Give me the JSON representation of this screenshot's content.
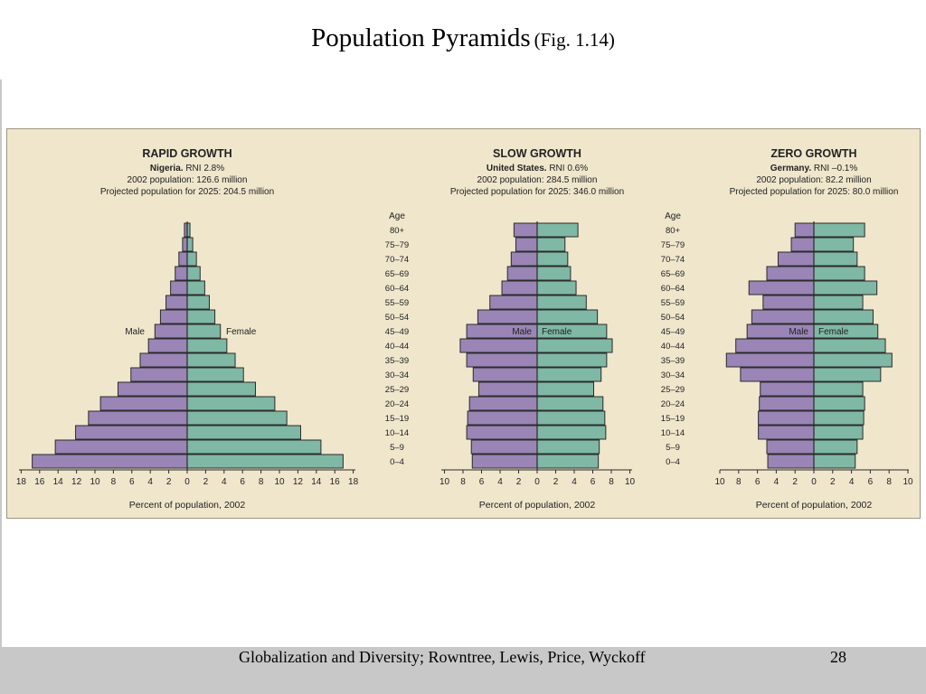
{
  "slide": {
    "title": "Population Pyramids",
    "subtitle": "(Fig. 1.14)",
    "footer_text": "Globalization and Diversity; Rowntree, Lewis, Price, Wyckoff",
    "page_number": "28"
  },
  "colors": {
    "male": "#9a85b6",
    "female": "#7fb8a4",
    "panel_bg": "#efe6cc",
    "outline": "#2b2b2b"
  },
  "chart_data": [
    {
      "type": "bar",
      "orientation": "population-pyramid",
      "title": "RAPID GROWTH",
      "country": "Nigeria.",
      "rni": "RNI 2.8%",
      "population_2002": "2002 population: 126.6 million",
      "projected_2025": "Projected population for 2025: 204.5 million",
      "xlabel": "Percent of population, 2002",
      "age_header": "Age",
      "male_label": "Male",
      "female_label": "Female",
      "x_ticks": [
        "18",
        "16",
        "14",
        "12",
        "10",
        "8",
        "6",
        "4",
        "2",
        "0",
        "2",
        "4",
        "6",
        "8",
        "10",
        "12",
        "14",
        "16",
        "18"
      ],
      "xlim": [
        -18,
        18
      ],
      "categories": [
        "80+",
        "75–79",
        "70–74",
        "65–69",
        "60–64",
        "55–59",
        "50–54",
        "45–49",
        "40–44",
        "35–39",
        "30–34",
        "25–29",
        "20–24",
        "15–19",
        "10–14",
        "5–9",
        "0–4"
      ],
      "series": [
        {
          "name": "Male",
          "values": [
            0.3,
            0.5,
            0.9,
            1.3,
            1.8,
            2.3,
            2.9,
            3.5,
            4.2,
            5.1,
            6.1,
            7.5,
            9.4,
            10.7,
            12.1,
            14.3,
            16.8
          ]
        },
        {
          "name": "Female",
          "values": [
            0.3,
            0.6,
            1.0,
            1.4,
            1.9,
            2.4,
            3.0,
            3.6,
            4.3,
            5.2,
            6.1,
            7.4,
            9.5,
            10.8,
            12.3,
            14.5,
            16.9
          ]
        }
      ]
    },
    {
      "type": "bar",
      "orientation": "population-pyramid",
      "title": "SLOW GROWTH",
      "country": "United States.",
      "rni": "RNI 0.6%",
      "population_2002": "2002 population: 284.5 million",
      "projected_2025": "Projected population for 2025: 346.0 million",
      "xlabel": "Percent of population, 2002",
      "age_header": "Age",
      "male_label": "Male",
      "female_label": "Female",
      "x_ticks": [
        "10",
        "8",
        "6",
        "4",
        "2",
        "0",
        "2",
        "4",
        "6",
        "8",
        "10"
      ],
      "xlim": [
        -10,
        10
      ],
      "categories": [
        "80+",
        "75–79",
        "70–74",
        "65–69",
        "60–64",
        "55–59",
        "50–54",
        "45–49",
        "40–44",
        "35–39",
        "30–34",
        "25–29",
        "20–24",
        "15–19",
        "10–14",
        "5–9",
        "0–4"
      ],
      "series": [
        {
          "name": "Male",
          "values": [
            2.5,
            2.3,
            2.8,
            3.2,
            3.8,
            5.1,
            6.4,
            7.6,
            8.3,
            7.6,
            6.9,
            6.3,
            7.3,
            7.5,
            7.6,
            7.1,
            7.0
          ]
        },
        {
          "name": "Female",
          "values": [
            4.4,
            3.0,
            3.3,
            3.6,
            4.2,
            5.3,
            6.5,
            7.5,
            8.1,
            7.5,
            6.9,
            6.1,
            7.1,
            7.3,
            7.4,
            6.7,
            6.6
          ]
        }
      ]
    },
    {
      "type": "bar",
      "orientation": "population-pyramid",
      "title": "ZERO GROWTH",
      "country": "Germany.",
      "rni": "RNI –0.1%",
      "population_2002": "2002 population: 82.2 million",
      "projected_2025": "Projected population for 2025: 80.0 million",
      "xlabel": "Percent of population, 2002",
      "age_header": "Age",
      "male_label": "Male",
      "female_label": "Female",
      "x_ticks": [
        "10",
        "8",
        "6",
        "4",
        "2",
        "0",
        "2",
        "4",
        "6",
        "8",
        "10"
      ],
      "xlim": [
        -10,
        10
      ],
      "categories": [
        "80+",
        "75–79",
        "70–74",
        "65–69",
        "60–64",
        "55–59",
        "50–54",
        "45–49",
        "40–44",
        "35–39",
        "30–34",
        "25–29",
        "20–24",
        "15–19",
        "10–14",
        "5–9",
        "0–4"
      ],
      "series": [
        {
          "name": "Male",
          "values": [
            2.0,
            2.4,
            3.8,
            5.0,
            6.9,
            5.4,
            6.6,
            7.1,
            8.3,
            9.3,
            7.8,
            5.7,
            5.8,
            5.9,
            5.9,
            5.0,
            4.9
          ]
        },
        {
          "name": "Female",
          "values": [
            5.4,
            4.2,
            4.6,
            5.4,
            6.7,
            5.2,
            6.3,
            6.8,
            7.6,
            8.3,
            7.1,
            5.2,
            5.4,
            5.3,
            5.2,
            4.6,
            4.4
          ]
        }
      ]
    }
  ]
}
